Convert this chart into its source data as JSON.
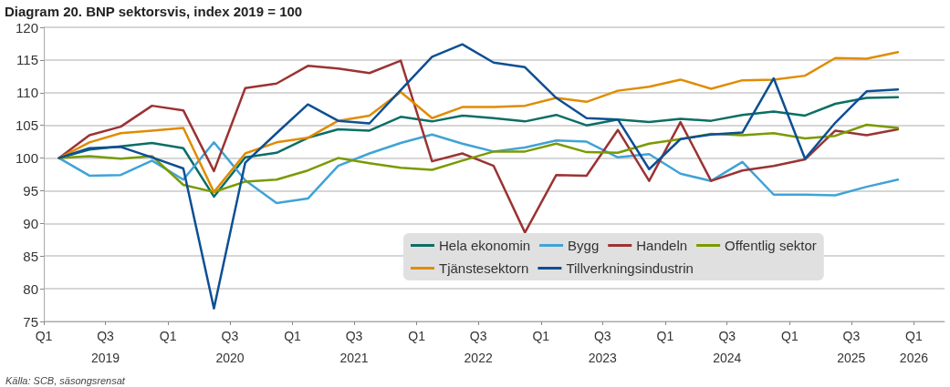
{
  "chart_data": {
    "type": "line",
    "title": "Diagram 20. BNP sektorsvis, index 2019 = 100",
    "x": [
      "2019-02-15",
      "2019-05-15",
      "2019-08-15",
      "2019-11-15",
      "2020-02-15",
      "2020-05-15",
      "2020-08-15",
      "2020-11-15",
      "2021-02-15",
      "2021-05-15",
      "2021-08-15",
      "2021-11-15",
      "2022-02-15",
      "2022-05-15",
      "2022-08-15",
      "2022-11-15",
      "2023-02-15",
      "2023-05-15",
      "2023-08-15",
      "2023-11-15",
      "2024-02-15",
      "2024-05-15",
      "2024-08-15",
      "2024-11-15",
      "2025-02-15",
      "2025-05-15",
      "2025-08-15",
      "2025-11-15"
    ],
    "series": [
      {
        "name": "Hela ekonomin",
        "color": "#0b6e65",
        "values": [
          100,
          101.3,
          101.8,
          102.3,
          101.5,
          94.1,
          100.1,
          100.8,
          103.1,
          104.4,
          104.2,
          106.3,
          105.6,
          106.5,
          106.1,
          105.6,
          106.6,
          105.0,
          105.9,
          105.5,
          106.0,
          105.7,
          106.6,
          107.1,
          106.5,
          108.3,
          109.2,
          109.3
        ]
      },
      {
        "name": "Bygg",
        "color": "#3fa3d6",
        "values": [
          100,
          97.3,
          97.4,
          99.6,
          96.7,
          102.4,
          96.6,
          93.1,
          93.8,
          98.8,
          100.7,
          102.3,
          103.6,
          102.2,
          101.0,
          101.6,
          102.7,
          102.5,
          100.1,
          100.6,
          97.6,
          96.5,
          99.4,
          94.4,
          94.4,
          94.3,
          95.6,
          96.7
        ]
      },
      {
        "name": "Handeln",
        "color": "#9b3333",
        "values": [
          100,
          103.5,
          104.8,
          108.0,
          107.3,
          98.0,
          110.7,
          111.4,
          114.1,
          113.7,
          113.0,
          114.9,
          99.5,
          100.7,
          98.8,
          88.6,
          97.4,
          97.3,
          104.3,
          96.5,
          105.5,
          96.5,
          98.1,
          98.8,
          99.8,
          104.2,
          103.5,
          104.4
        ]
      },
      {
        "name": "Offentlig sektor",
        "color": "#7a9a01",
        "values": [
          100,
          100.3,
          99.9,
          100.3,
          95.9,
          94.8,
          96.4,
          96.7,
          98.1,
          100.0,
          99.2,
          98.5,
          98.2,
          99.6,
          101.0,
          101.0,
          102.2,
          100.9,
          100.8,
          102.2,
          102.9,
          103.7,
          103.5,
          103.8,
          103.0,
          103.4,
          105.1,
          104.6
        ]
      },
      {
        "name": "Tjänstesektorn",
        "color": "#e08c00",
        "values": [
          100,
          102.4,
          103.8,
          104.2,
          104.6,
          94.8,
          100.7,
          102.4,
          103.1,
          105.7,
          106.5,
          110.1,
          106.1,
          107.8,
          107.8,
          108.0,
          109.2,
          108.6,
          110.3,
          110.9,
          112.0,
          110.6,
          111.9,
          112.0,
          112.6,
          115.3,
          115.2,
          116.2
        ]
      },
      {
        "name": "Tillverkningsindustrin",
        "color": "#0d4f94",
        "values": [
          100,
          101.5,
          101.7,
          100.1,
          98.4,
          77.0,
          99.3,
          103.8,
          108.2,
          105.7,
          105.3,
          110.4,
          115.5,
          117.4,
          114.6,
          113.9,
          109.2,
          106.1,
          105.9,
          98.3,
          102.9,
          103.6,
          103.9,
          112.2,
          99.9,
          105.4,
          110.2,
          110.5
        ]
      }
    ],
    "xlim": [
      "2019-01-01",
      "2026-04-01"
    ],
    "xticks": [
      {
        "value": "2019-01-01",
        "label": "Q1"
      },
      {
        "value": "2019-07-01",
        "label": "Q3\n2019"
      },
      {
        "value": "2020-01-01",
        "label": "Q1"
      },
      {
        "value": "2020-07-01",
        "label": "Q3\n2020"
      },
      {
        "value": "2021-01-01",
        "label": "Q1"
      },
      {
        "value": "2021-07-01",
        "label": "Q3\n2021"
      },
      {
        "value": "2022-01-01",
        "label": "Q1"
      },
      {
        "value": "2022-07-01",
        "label": "Q3\n2022"
      },
      {
        "value": "2023-01-01",
        "label": "Q1"
      },
      {
        "value": "2023-07-01",
        "label": "Q3\n2023"
      },
      {
        "value": "2024-01-01",
        "label": "Q1"
      },
      {
        "value": "2024-07-01",
        "label": "Q3\n2024"
      },
      {
        "value": "2025-01-01",
        "label": "Q1"
      },
      {
        "value": "2025-07-01",
        "label": "Q3\n2025"
      },
      {
        "value": "2026-01-01",
        "label": "Q1\n2026"
      }
    ],
    "ylim": [
      75,
      120
    ],
    "yticks": [
      75,
      80,
      85,
      90,
      95,
      100,
      105,
      110,
      115,
      120
    ],
    "grid": "y",
    "legend": "bottom",
    "marker": "none",
    "line_style": "solid",
    "annotations": [
      "Källa: SCB, säsongsrensat"
    ]
  }
}
